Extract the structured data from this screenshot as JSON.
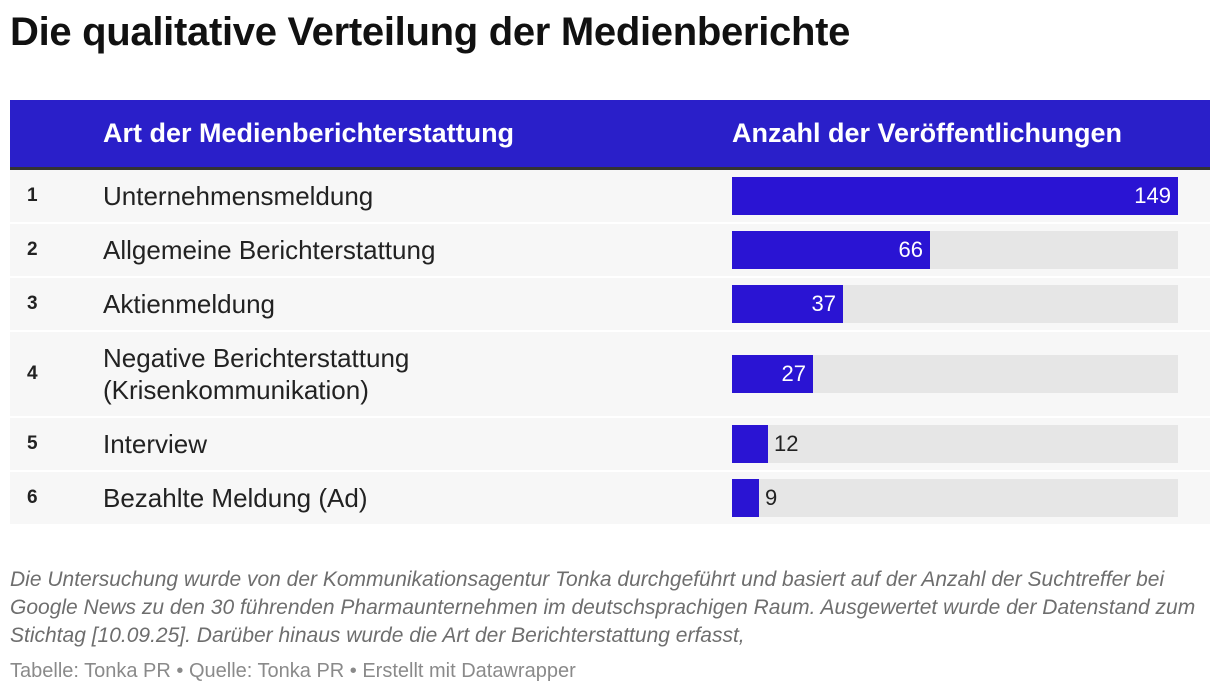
{
  "title": "Die qualitative Verteilung der Medienberichte",
  "table": {
    "header": {
      "category": "Art der Medienberichterstattung",
      "value": "Anzahl der Veröffentlichungen"
    }
  },
  "chart_data": {
    "type": "bar",
    "title": "Die qualitative Verteilung der Medienberichte",
    "xlabel": "Art der Medienberichterstattung",
    "ylabel": "Anzahl der Veröffentlichungen",
    "ylim": [
      0,
      149
    ],
    "ranks": [
      "1",
      "2",
      "3",
      "4",
      "5",
      "6"
    ],
    "categories": [
      "Unternehmensmeldung",
      "Allgemeine Berichterstattung",
      "Aktienmeldung",
      "Negative Berichterstattung\n(Krisenkommunikation)",
      "Interview",
      "Bezahlte Meldung (Ad)"
    ],
    "values": [
      149,
      66,
      37,
      27,
      12,
      9
    ]
  },
  "colors": {
    "header_bg": "#2a1fc9",
    "bar": "#2a14d3",
    "track": "#e6e6e6"
  },
  "notes": "Die Untersuchung wurde von der Kommunikationsagentur Tonka durchgeführt und basiert auf der Anzahl der Suchtreffer bei Google News zu den 30 führenden Pharmaunternehmen im deutschsprachigen Raum. Ausgewertet wurde der Datenstand zum Stichtag [10.09.25]. Darüber hinaus wurde die Art der Berichterstattung erfasst,",
  "source": "Tabelle: Tonka PR • Quelle: Tonka PR • Erstellt mit Datawrapper"
}
